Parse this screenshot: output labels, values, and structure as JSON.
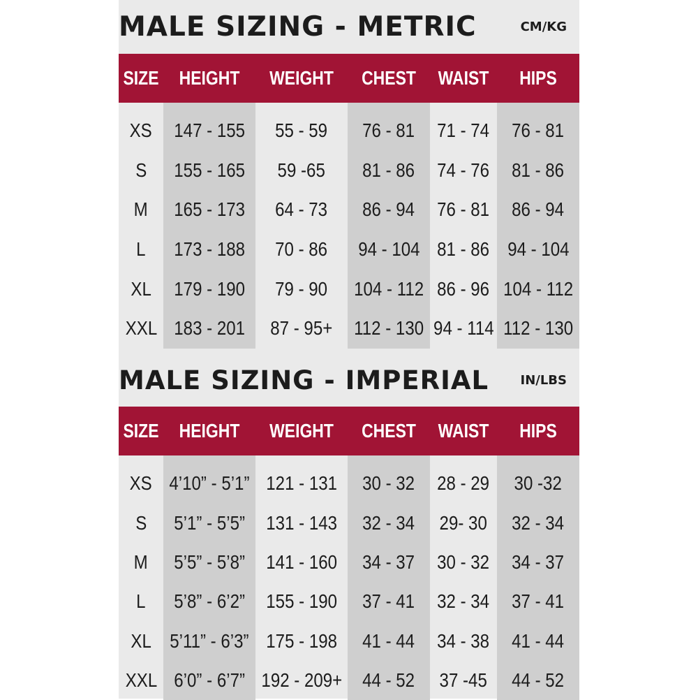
{
  "metric": {
    "title": "MALE SIZING - METRIC",
    "unit": "CM/KG",
    "headers": [
      "SIZE",
      "HEIGHT",
      "WEIGHT",
      "CHEST",
      "WAIST",
      "HIPS"
    ],
    "columns": [
      [
        "XS",
        "S",
        "M",
        "L",
        "XL",
        "XXL"
      ],
      [
        "147 - 155",
        "155 - 165",
        "165 - 173",
        "173 - 188",
        "179 - 190",
        "183 - 201"
      ],
      [
        "55 - 59",
        "59 -65",
        "64 - 73",
        "70 - 86",
        "79 - 90",
        "87 - 95+"
      ],
      [
        "76 - 81",
        "81 - 86",
        "86 - 94",
        "94 - 104",
        "104 - 112",
        "112 - 130"
      ],
      [
        "71 - 74",
        "74 - 76",
        "76 - 81",
        "81 - 86",
        "86 - 96",
        "94 - 114"
      ],
      [
        "76 - 81",
        "81 - 86",
        "86 - 94",
        "94 - 104",
        "104 - 112",
        "112 - 130"
      ]
    ]
  },
  "imperial": {
    "title": "MALE SIZING - IMPERIAL",
    "unit": "IN/LBS",
    "headers": [
      "SIZE",
      "HEIGHT",
      "WEIGHT",
      "CHEST",
      "WAIST",
      "HIPS"
    ],
    "columns": [
      [
        "XS",
        "S",
        "M",
        "L",
        "XL",
        "XXL"
      ],
      [
        "4’10” - 5’1”",
        "5’1” - 5’5”",
        "5’5” - 5’8”",
        "5’8” - 6’2”",
        "5’11” - 6’3”",
        "6’0” - 6’7”"
      ],
      [
        "121 - 131",
        "131 - 143",
        "141 - 160",
        "155 - 190",
        "175 - 198",
        "192 - 209+"
      ],
      [
        "30 - 32",
        "32 - 34",
        "34 - 37",
        "37 - 41",
        "41 - 44",
        "44 - 52"
      ],
      [
        "28 - 29",
        "29- 30",
        "30 - 32",
        "32 - 34",
        "34 - 38",
        "37 -45"
      ],
      [
        "30 -32",
        "32 - 34",
        "34 - 37",
        "37 - 41",
        "41 - 44",
        "44 - 52"
      ]
    ]
  },
  "colors": {
    "header_bg": "#a11435",
    "header_text": "#ffffff",
    "panel_bg": "#eaeaea",
    "shaded_col": "#cfcfcf",
    "text": "#1c1c1c"
  }
}
